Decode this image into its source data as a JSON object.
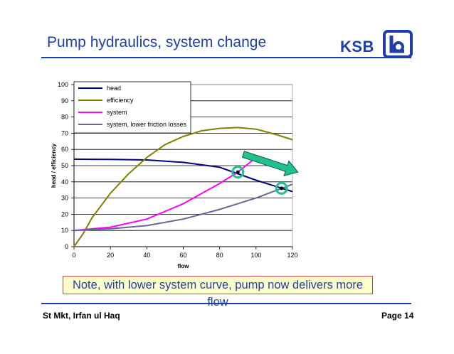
{
  "slide": {
    "title": "Pump hydraulics, system change",
    "logo_text": "KSB",
    "note": "Note, with lower system curve, pump now delivers more flow",
    "footer_left": "St Mkt, Irfan ul Haq",
    "footer_right": "Page 14"
  },
  "colors": {
    "title_blue": "#1f3fa8",
    "note_background": "#ffffcc",
    "arrow_fill": "#20c090",
    "marker_ring": "#20c090"
  },
  "chart_data": {
    "type": "line",
    "title": "",
    "xlabel": "flow",
    "ylabel": "head / efficiency",
    "xlim": [
      0,
      120
    ],
    "ylim": [
      0,
      100
    ],
    "x_ticks": [
      "0",
      "20",
      "40",
      "60",
      "80",
      "100",
      "120"
    ],
    "y_ticks": [
      "0",
      "10",
      "20",
      "30",
      "40",
      "50",
      "60",
      "70",
      "80",
      "90",
      "100"
    ],
    "grid": "horizontal",
    "legend_position": "top-left",
    "series": [
      {
        "name": "head",
        "color": "#000080",
        "points": [
          [
            0,
            54
          ],
          [
            20,
            53.8
          ],
          [
            40,
            53.5
          ],
          [
            60,
            52
          ],
          [
            80,
            49
          ],
          [
            100,
            41
          ],
          [
            120,
            34
          ]
        ]
      },
      {
        "name": "efficiency",
        "color": "#808000",
        "points": [
          [
            0,
            0
          ],
          [
            5,
            8
          ],
          [
            10,
            18
          ],
          [
            20,
            33
          ],
          [
            30,
            45
          ],
          [
            40,
            55
          ],
          [
            50,
            63
          ],
          [
            60,
            68
          ],
          [
            70,
            71.5
          ],
          [
            80,
            73
          ],
          [
            90,
            73.5
          ],
          [
            100,
            72.5
          ],
          [
            110,
            69.5
          ],
          [
            120,
            66
          ]
        ]
      },
      {
        "name": "system",
        "color": "#ff00ff",
        "points": [
          [
            0,
            10
          ],
          [
            20,
            12
          ],
          [
            40,
            17
          ],
          [
            60,
            26.5
          ],
          [
            80,
            39
          ],
          [
            90,
            46
          ],
          [
            100,
            55
          ]
        ]
      },
      {
        "name": "system, lower friction losses",
        "color": "#666699",
        "points": [
          [
            0,
            10
          ],
          [
            20,
            11
          ],
          [
            40,
            13
          ],
          [
            60,
            17
          ],
          [
            80,
            23
          ],
          [
            100,
            30
          ],
          [
            120,
            38.5
          ]
        ]
      }
    ],
    "annotations": {
      "operating_points": [
        [
          90,
          46
        ],
        [
          114,
          36
        ]
      ],
      "arrow": {
        "from": [
          93,
          57
        ],
        "to": [
          123,
          46
        ]
      }
    }
  }
}
